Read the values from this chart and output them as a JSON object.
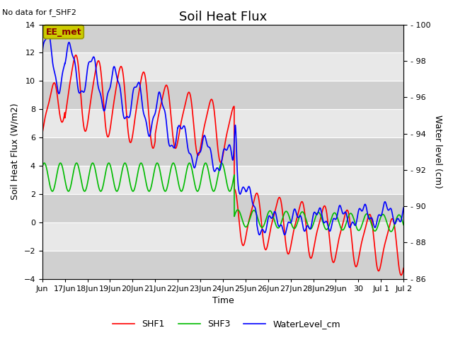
{
  "title": "Soil Heat Flux",
  "note": "No data for f_SHF2",
  "ylabel_left": "Soil Heat Flux (W/m2)",
  "ylabel_right": "Water level (cm)",
  "xlabel": "Time",
  "ylim_left": [
    -4,
    14
  ],
  "ylim_right": [
    86,
    100
  ],
  "yticks_left": [
    -4,
    -2,
    0,
    2,
    4,
    6,
    8,
    10,
    12,
    14
  ],
  "yticks_right": [
    86,
    88,
    90,
    92,
    94,
    96,
    98,
    100
  ],
  "xtick_positions": [
    0,
    1,
    2,
    3,
    4,
    5,
    6,
    7,
    8,
    9,
    10,
    11,
    12,
    13,
    14,
    15,
    16
  ],
  "xtick_labels": [
    "Jun",
    "17Jun",
    "18Jun",
    "19Jun",
    "20Jun",
    "21Jun",
    "22Jun",
    "23Jun",
    "24Jun",
    "25Jun",
    "26Jun",
    "27Jun",
    "28Jun",
    "29Jun",
    "30",
    "Jul 1",
    "Jul 2"
  ],
  "legend_labels": [
    "SHF1",
    "SHF3",
    "WaterLevel_cm"
  ],
  "legend_colors": [
    "#ff0000",
    "#00bb00",
    "#0000ff"
  ],
  "ee_met_label": "EE_met",
  "ee_met_box_facecolor": "#cccc00",
  "ee_met_box_edgecolor": "#999900",
  "background_color": "#ffffff",
  "plot_bg_light": "#e8e8e8",
  "plot_bg_dark": "#d0d0d0",
  "grid_color": "#ffffff",
  "line_width": 1.2,
  "title_fontsize": 13,
  "label_fontsize": 9,
  "tick_fontsize": 8,
  "legend_fontsize": 9
}
